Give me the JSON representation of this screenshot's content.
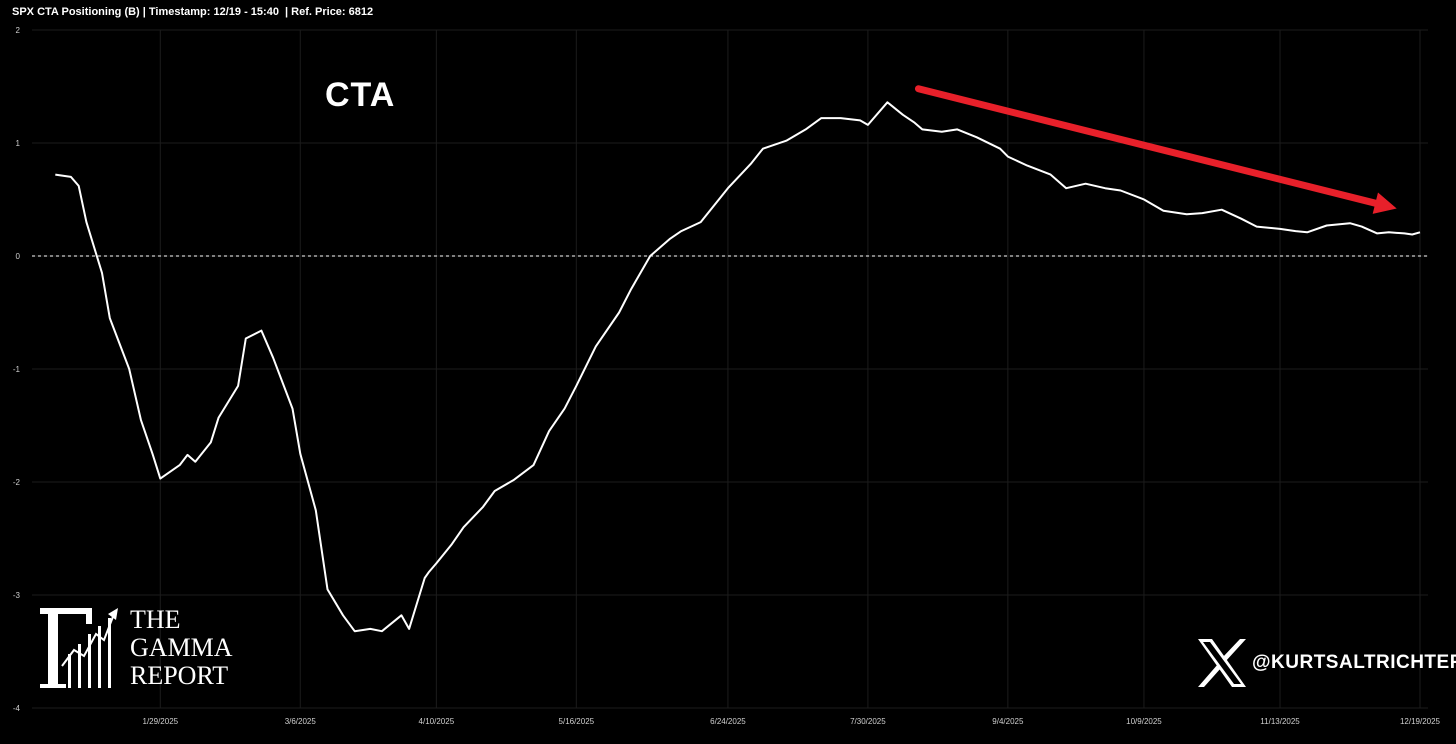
{
  "header": {
    "title": "SPX CTA Positioning (B) | Timestamp: 12/19 - 15:40  | Ref. Price: 6812"
  },
  "annotation": {
    "label": "CTA",
    "arrow_color": "#e8202a",
    "arrow_from": {
      "x": "8/12/2025",
      "y": 1.48
    },
    "arrow_to": {
      "x": "12/13/2025",
      "y": 0.42
    }
  },
  "branding": {
    "logo_lines": [
      "THE",
      "GAMMA",
      "REPORT"
    ],
    "logo_icon": "gamma-chart-logo-icon",
    "handle_icon": "x-logo-icon",
    "handle": "@KURTSALTRICHTER"
  },
  "colors": {
    "background": "#000000",
    "line": "#ffffff",
    "zero_line": "#cccccc",
    "grid": "#1c1c1c"
  },
  "chart_data": {
    "type": "line",
    "title": "SPX CTA Positioning (B)",
    "xlabel": "",
    "ylabel": "",
    "ylim": [
      -4,
      2
    ],
    "y_ticks": [
      2,
      1,
      0,
      -1,
      -2,
      -3,
      -4
    ],
    "x_ticks": [
      "1/29/2025",
      "3/6/2025",
      "4/10/2025",
      "5/16/2025",
      "6/24/2025",
      "7/30/2025",
      "9/4/2025",
      "10/9/2025",
      "11/13/2025",
      "12/19/2025"
    ],
    "grid": true,
    "zero_line": "dotted",
    "series": [
      {
        "name": "",
        "x": [
          "1/2/2025",
          "1/6/2025",
          "1/8/2025",
          "1/10/2025",
          "1/14/2025",
          "1/16/2025",
          "1/21/2025",
          "1/24/2025",
          "1/27/2025",
          "1/29/2025",
          "2/3/2025",
          "2/5/2025",
          "2/7/2025",
          "2/11/2025",
          "2/13/2025",
          "2/18/2025",
          "2/20/2025",
          "2/24/2025",
          "2/27/2025",
          "3/4/2025",
          "3/6/2025",
          "3/10/2025",
          "3/13/2025",
          "3/17/2025",
          "3/20/2025",
          "3/24/2025",
          "3/27/2025",
          "4/1/2025",
          "4/3/2025",
          "4/7/2025",
          "4/8/2025",
          "4/10/2025",
          "4/14/2025",
          "4/17/2025",
          "4/22/2025",
          "4/25/2025",
          "4/30/2025",
          "5/5/2025",
          "5/9/2025",
          "5/13/2025",
          "5/16/2025",
          "5/21/2025",
          "5/27/2025",
          "5/30/2025",
          "6/4/2025",
          "6/9/2025",
          "6/12/2025",
          "6/17/2025",
          "6/24/2025",
          "6/30/2025",
          "7/3/2025",
          "7/9/2025",
          "7/14/2025",
          "7/18/2025",
          "7/23/2025",
          "7/28/2025",
          "7/30/2025",
          "8/4/2025",
          "8/8/2025",
          "8/11/2025",
          "8/13/2025",
          "8/18/2025",
          "8/22/2025",
          "8/27/2025",
          "9/2/2025",
          "9/4/2025",
          "9/9/2025",
          "9/15/2025",
          "9/19/2025",
          "9/24/2025",
          "9/29/2025",
          "10/3/2025",
          "10/9/2025",
          "10/14/2025",
          "10/20/2025",
          "10/24/2025",
          "10/29/2025",
          "11/3/2025",
          "11/7/2025",
          "11/13/2025",
          "11/17/2025",
          "11/20/2025",
          "11/25/2025",
          "12/1/2025",
          "12/4/2025",
          "12/8/2025",
          "12/11/2025",
          "12/15/2025",
          "12/17/2025",
          "12/19/2025"
        ],
        "y": [
          0.72,
          0.7,
          0.62,
          0.3,
          -0.15,
          -0.55,
          -1.0,
          -1.45,
          -1.75,
          -1.97,
          -1.85,
          -1.76,
          -1.82,
          -1.65,
          -1.43,
          -1.15,
          -0.73,
          -0.66,
          -0.9,
          -1.35,
          -1.75,
          -2.25,
          -2.95,
          -3.18,
          -3.32,
          -3.3,
          -3.32,
          -3.18,
          -3.3,
          -2.85,
          -2.8,
          -2.72,
          -2.55,
          -2.4,
          -2.22,
          -2.08,
          -1.98,
          -1.85,
          -1.55,
          -1.35,
          -1.15,
          -0.8,
          -0.5,
          -0.3,
          0.0,
          0.15,
          0.22,
          0.3,
          0.6,
          0.82,
          0.95,
          1.02,
          1.12,
          1.22,
          1.22,
          1.2,
          1.16,
          1.36,
          1.25,
          1.18,
          1.12,
          1.1,
          1.12,
          1.05,
          0.95,
          0.88,
          0.8,
          0.72,
          0.6,
          0.64,
          0.6,
          0.58,
          0.5,
          0.4,
          0.37,
          0.38,
          0.41,
          0.33,
          0.26,
          0.24,
          0.22,
          0.21,
          0.27,
          0.29,
          0.26,
          0.2,
          0.21,
          0.2,
          0.19,
          0.21
        ]
      }
    ]
  }
}
